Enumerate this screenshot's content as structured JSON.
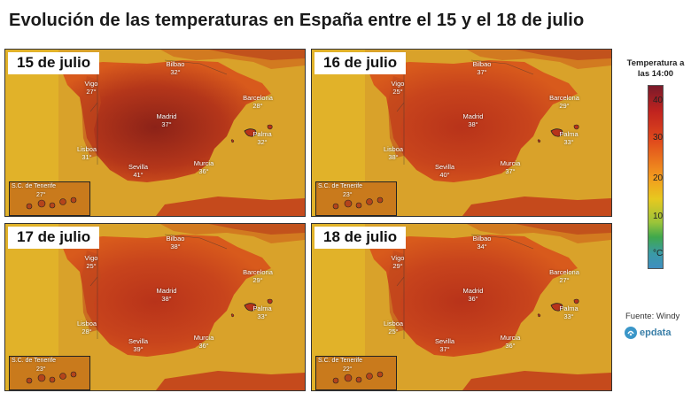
{
  "title": "Evolución de las temperaturas en España entre el 15 y el 18 de julio",
  "legend": {
    "title": "Temperatura a las 14:00",
    "ticks": [
      "40",
      "30",
      "20",
      "10",
      "°C"
    ]
  },
  "source": "Fuente: Windy",
  "logo": {
    "name": "epdata-logo",
    "text": "epdata"
  },
  "colors": {
    "hot": "#8c2218",
    "warm": "#d2441a",
    "mild": "#e8891e",
    "sea": "#d4a020",
    "cool": "#3f8fc0"
  },
  "inset_label": "S.C. de Tenerife",
  "panels": [
    {
      "date": "15 de julio",
      "cities": [
        {
          "name": "Bilbao",
          "temp": "32°"
        },
        {
          "name": "Vigo",
          "temp": "27°"
        },
        {
          "name": "Barcelona",
          "temp": "28°"
        },
        {
          "name": "Madrid",
          "temp": "37°"
        },
        {
          "name": "Palma",
          "temp": "32°"
        },
        {
          "name": "Lisboa",
          "temp": "31°"
        },
        {
          "name": "Murcia",
          "temp": "36°"
        },
        {
          "name": "Sevilla",
          "temp": "41°"
        }
      ],
      "tenerife": "27°"
    },
    {
      "date": "16 de julio",
      "cities": [
        {
          "name": "Bilbao",
          "temp": "37°"
        },
        {
          "name": "Vigo",
          "temp": "25°"
        },
        {
          "name": "Barcelona",
          "temp": "29°"
        },
        {
          "name": "Madrid",
          "temp": "38°"
        },
        {
          "name": "Palma",
          "temp": "33°"
        },
        {
          "name": "Lisboa",
          "temp": "38°"
        },
        {
          "name": "Murcia",
          "temp": "37°"
        },
        {
          "name": "Sevilla",
          "temp": "40°"
        }
      ],
      "tenerife": "23°"
    },
    {
      "date": "17 de julio",
      "cities": [
        {
          "name": "Bilbao",
          "temp": "38°"
        },
        {
          "name": "Vigo",
          "temp": "25°"
        },
        {
          "name": "Barcelona",
          "temp": "29°"
        },
        {
          "name": "Madrid",
          "temp": "38°"
        },
        {
          "name": "Palma",
          "temp": "33°"
        },
        {
          "name": "Lisboa",
          "temp": "28°"
        },
        {
          "name": "Murcia",
          "temp": "36°"
        },
        {
          "name": "Sevilla",
          "temp": "39°"
        }
      ],
      "tenerife": "23°"
    },
    {
      "date": "18 de julio",
      "cities": [
        {
          "name": "Bilbao",
          "temp": "34°"
        },
        {
          "name": "Vigo",
          "temp": "29°"
        },
        {
          "name": "Barcelona",
          "temp": "27°"
        },
        {
          "name": "Madrid",
          "temp": "36°"
        },
        {
          "name": "Palma",
          "temp": "33°"
        },
        {
          "name": "Lisboa",
          "temp": "25°"
        },
        {
          "name": "Murcia",
          "temp": "36°"
        },
        {
          "name": "Sevilla",
          "temp": "37°"
        }
      ],
      "tenerife": "22°"
    }
  ]
}
